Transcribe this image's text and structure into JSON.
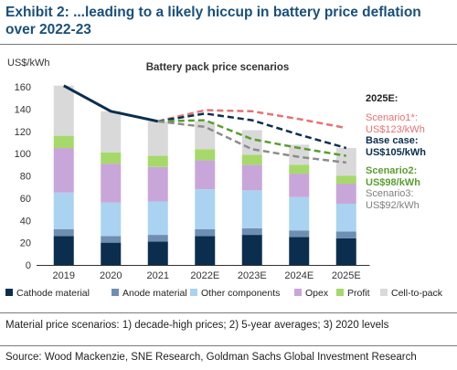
{
  "exhibit": {
    "title": "Exhibit 2: ...leading to a likely hiccup in battery price deflation over 2022-23"
  },
  "footer": {
    "note": "Material price scenarios: 1) decade-high prices; 2) 5-year averages; 3) 2020 levels",
    "source": "Source: Wood Mackenzie, SNE Research, Goldman Sachs Global Investment Research"
  },
  "chart_data": {
    "type": "bar",
    "title": "Battery pack price scenarios",
    "ylabel": "US$/kWh",
    "xlabel": "",
    "ylim": [
      0,
      160
    ],
    "yticks": [
      0,
      20,
      40,
      60,
      80,
      100,
      120,
      140,
      160
    ],
    "grid": false,
    "stacked": true,
    "legend_position": "bottom",
    "categories": [
      "2019",
      "2020",
      "2021",
      "2022E",
      "2023E",
      "2024E",
      "2025E"
    ],
    "series": [
      {
        "name": "Cathode material",
        "color": "#0b2e4f",
        "values": [
          26,
          20,
          21,
          26,
          27,
          25,
          24
        ]
      },
      {
        "name": "Anode material",
        "color": "#6e8fb3",
        "values": [
          6,
          6,
          6,
          6,
          6,
          6,
          6
        ]
      },
      {
        "name": "Other components",
        "color": "#a9d3f0",
        "values": [
          33,
          30,
          30,
          36,
          34,
          30,
          25
        ]
      },
      {
        "name": "Opex",
        "color": "#c9a6d9",
        "values": [
          40,
          35,
          31,
          26,
          23,
          21,
          18
        ]
      },
      {
        "name": "Profit",
        "color": "#a6d96a",
        "values": [
          11,
          10,
          10,
          10,
          9,
          8,
          7
        ]
      },
      {
        "name": "Cell-to-pack",
        "color": "#d9d9d9",
        "values": [
          45,
          37,
          31,
          25,
          22,
          18,
          25
        ]
      }
    ],
    "line_series": [
      {
        "key": "historical",
        "color": "#0b2e4f",
        "style": "solid",
        "x": [
          "2019",
          "2020",
          "2021"
        ],
        "values": [
          161,
          138,
          129
        ]
      },
      {
        "key": "scenario1",
        "color": "#e57373",
        "style": "dashed",
        "x": [
          "2021",
          "2022E",
          "2023E",
          "2024E",
          "2025E"
        ],
        "values": [
          129,
          139,
          138,
          131,
          123
        ]
      },
      {
        "key": "base",
        "color": "#0b2e4f",
        "style": "dashed",
        "x": [
          "2021",
          "2022E",
          "2023E",
          "2024E",
          "2025E"
        ],
        "values": [
          129,
          136,
          130,
          117,
          105
        ]
      },
      {
        "key": "scenario2",
        "color": "#5a9e2f",
        "style": "dashed",
        "x": [
          "2021",
          "2022E",
          "2023E",
          "2024E",
          "2025E"
        ],
        "values": [
          129,
          130,
          113,
          105,
          98
        ]
      },
      {
        "key": "scenario3",
        "color": "#8c8c8c",
        "style": "dashed",
        "x": [
          "2021",
          "2022E",
          "2023E",
          "2024E",
          "2025E"
        ],
        "values": [
          129,
          124,
          104,
          97,
          92
        ]
      }
    ],
    "annotations": {
      "header": "2025E:",
      "items": [
        {
          "line1": "Scenario1*:",
          "line2": "US$123/kWh",
          "color": "#e57373",
          "bold": false
        },
        {
          "line1": "Base case:",
          "line2": "US$105/kWh",
          "color": "#0b2e4f",
          "bold": true
        },
        {
          "line1": "Scenario2:",
          "line2": "US$98/kWh",
          "color": "#5a9e2f",
          "bold": true
        },
        {
          "line1": "Scenario3:",
          "line2": "US$92/kWh",
          "color": "#7f7f7f",
          "bold": false
        }
      ]
    }
  }
}
